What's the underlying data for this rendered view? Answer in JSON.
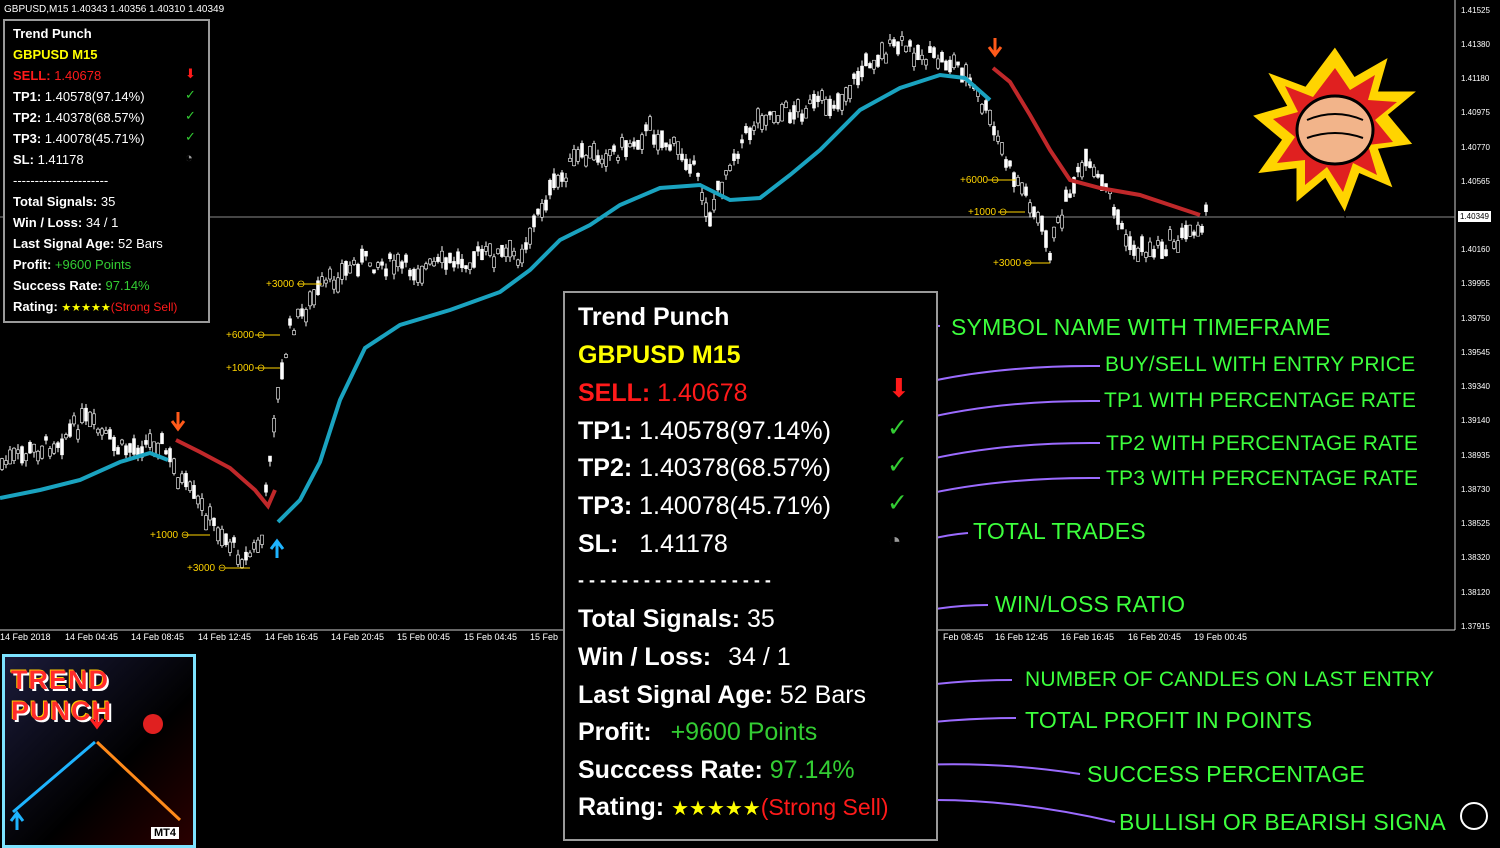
{
  "header": {
    "symbol_info": "GBPUSD,M15  1.40343 1.40356 1.40310 1.40349"
  },
  "small_panel": {
    "title": "Trend Punch",
    "symbol": "GBPUSD M15",
    "signal_label": "SELL:",
    "signal_price": "1.40678",
    "tp1_label": "TP1:",
    "tp1_value": "1.40578(97.14%)",
    "tp2_label": "TP2:",
    "tp2_value": "1.40378(68.57%)",
    "tp3_label": "TP3:",
    "tp3_value": "1.40078(45.71%)",
    "sl_label": "SL:",
    "sl_value": "1.41178",
    "separator": "----------------------",
    "total_signals_label": "Total Signals:",
    "total_signals_value": "35",
    "winloss_label": "Win / Loss:",
    "winloss_value": "34 / 1",
    "age_label": "Last Signal Age:",
    "age_value": "52 Bars",
    "profit_label": "Profit:",
    "profit_value": "+9600 Points",
    "success_label": "Success Rate:",
    "success_value": "97.14%",
    "rating_label": "Rating:",
    "rating_stars": "★★★★★",
    "rating_text": "(Strong Sell)"
  },
  "big_panel": {
    "title": "Trend Punch",
    "symbol": "GBPUSD M15",
    "signal_label": "SELL:",
    "signal_price": "1.40678",
    "tp1_label": "TP1:",
    "tp1_value": "1.40578(97.14%)",
    "tp2_label": "TP2:",
    "tp2_value": "1.40378(68.57%)",
    "tp3_label": "TP3:",
    "tp3_value": "1.40078(45.71%)",
    "sl_label": "SL:",
    "sl_value": "1.41178",
    "separator": "- - - - - - - - - - - - - - - - - -",
    "total_signals_label": "Total Signals:",
    "total_signals_value": "35",
    "winloss_label": "Win / Loss:",
    "winloss_value": "34 / 1",
    "age_label": "Last Signal Age:",
    "age_value": "52 Bars",
    "profit_label": "Profit:",
    "profit_value": "+9600 Points",
    "success_label": "Succcess Rate:",
    "success_value": "97.14%",
    "rating_label": "Rating:",
    "rating_stars": "★★★★★",
    "rating_text": "(Strong Sell)"
  },
  "annotations": [
    "SYMBOL NAME WITH TIMEFRAME",
    "BUY/SELL WITH ENTRY PRICE",
    "TP1 WITH PERCENTAGE RATE",
    "TP2 WITH PERCENTAGE RATE",
    "TP3 WITH PERCENTAGE RATE",
    "TOTAL TRADES",
    "WIN/LOSS RATIO",
    "NUMBER OF CANDLES ON LAST ENTRY",
    "TOTAL PROFIT IN POINTS",
    "SUCCESS PERCENTAGE",
    "BULLISH OR BEARISH SIGNA"
  ],
  "price_axis": [
    "1.41525",
    "1.41380",
    "1.41180",
    "1.40975",
    "1.40770",
    "1.40565",
    "1.40160",
    "1.39955",
    "1.39750",
    "1.39545",
    "1.39340",
    "1.39140",
    "1.38935",
    "1.38730",
    "1.38525",
    "1.38320",
    "1.38120",
    "1.37915"
  ],
  "current_price": "1.40349",
  "time_axis": [
    "14 Feb 2018",
    "14 Feb 04:45",
    "14 Feb 08:45",
    "14 Feb 12:45",
    "14 Feb 16:45",
    "14 Feb 20:45",
    "15 Feb 00:45",
    "15 Feb 04:45",
    "15 Feb",
    "Feb 08:45",
    "16 Feb 12:45",
    "16 Feb 16:45",
    "16 Feb 20:45",
    "19 Feb 00:45"
  ],
  "tp_markers": [
    "+1000",
    "+3000",
    "+6000",
    "+1000",
    "+3000",
    "+6000",
    "+1000",
    "+3000"
  ],
  "logo": {
    "title": "TREND PUNCH",
    "badge": "MT4"
  },
  "colors": {
    "annotation": "#3dff3d",
    "ma_bull": "#1aa3c0",
    "ma_bear": "#c0282a",
    "arrow_sell": "#ff5a1a",
    "arrow_buy": "#1eb4ff"
  },
  "icons": [
    "arrow-down-icon",
    "checkmark-icon",
    "clock-icon",
    "fist-icon",
    "zoom-icon"
  ]
}
